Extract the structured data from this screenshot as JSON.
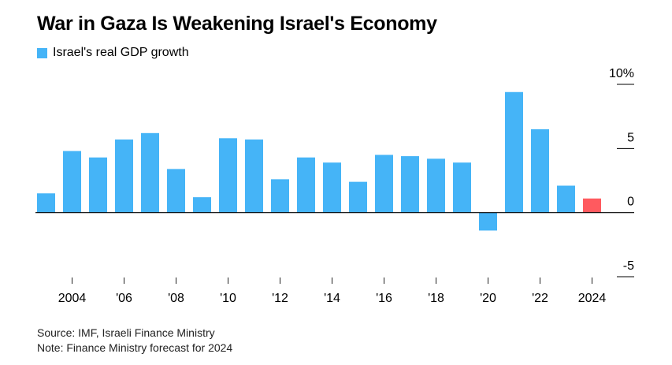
{
  "title": "War in Gaza Is Weakening Israel's Economy",
  "legend_label": "Israel's real GDP growth",
  "source": "Source: IMF, Israeli Finance Ministry",
  "note": "Note: Finance Ministry forecast for 2024",
  "colors": {
    "actual": "#45b4f7",
    "forecast": "#ff5a5f",
    "axis": "#000000",
    "tick": "#222222"
  },
  "chart_data": {
    "type": "bar",
    "title": "War in Gaza Is Weakening Israel's Economy",
    "xlabel": "",
    "ylabel": "",
    "ylim": [
      -5,
      10
    ],
    "y_ticks": [
      {
        "value": 10,
        "label": "10%"
      },
      {
        "value": 5,
        "label": "5"
      },
      {
        "value": 0,
        "label": "0"
      },
      {
        "value": -5,
        "label": "-5"
      }
    ],
    "x_tick_labels": [
      "2004",
      "'06",
      "'08",
      "'10",
      "'12",
      "'14",
      "'16",
      "'18",
      "'20",
      "'22",
      "2024"
    ],
    "categories": [
      "2003",
      "2004",
      "2005",
      "2006",
      "2007",
      "2008",
      "2009",
      "2010",
      "2011",
      "2012",
      "2013",
      "2014",
      "2015",
      "2016",
      "2017",
      "2018",
      "2019",
      "2020",
      "2021",
      "2022",
      "2023",
      "2024"
    ],
    "series": [
      {
        "name": "Israel's real GDP growth",
        "values": [
          1.5,
          4.8,
          4.3,
          5.7,
          6.2,
          3.4,
          1.2,
          5.8,
          5.7,
          2.6,
          4.3,
          3.9,
          2.4,
          4.5,
          4.4,
          4.2,
          3.9,
          -1.4,
          9.4,
          6.5,
          2.1,
          1.1
        ],
        "forecast": [
          false,
          false,
          false,
          false,
          false,
          false,
          false,
          false,
          false,
          false,
          false,
          false,
          false,
          false,
          false,
          false,
          false,
          false,
          false,
          false,
          false,
          true
        ]
      }
    ],
    "grid": false,
    "legend_position": "top-left"
  }
}
